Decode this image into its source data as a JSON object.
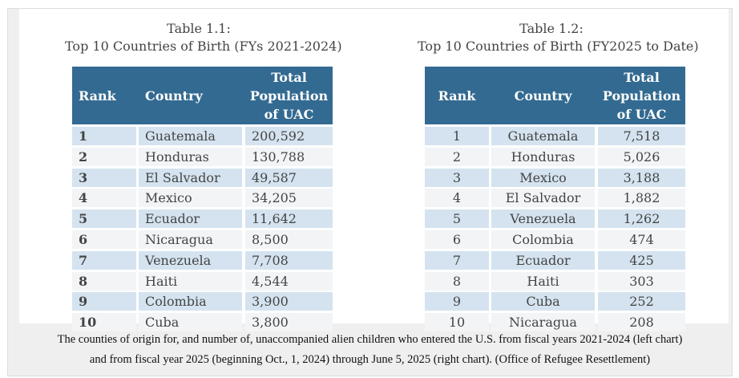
{
  "table_left": {
    "title_line1": "Table 1.1:",
    "title_line2": "Top 10 Countries of Birth (FYs 2021-2024)",
    "headers": [
      "Rank",
      "Country",
      "Total Population of UAC"
    ],
    "rows": [
      [
        "1",
        "Guatemala",
        "200,592"
      ],
      [
        "2",
        "Honduras",
        "130,788"
      ],
      [
        "3",
        "El Salvador",
        "49,587"
      ],
      [
        "4",
        "Mexico",
        "34,205"
      ],
      [
        "5",
        "Ecuador",
        "11,642"
      ],
      [
        "6",
        "Nicaragua",
        "8,500"
      ],
      [
        "7",
        "Venezuela",
        "7,708"
      ],
      [
        "8",
        "Haiti",
        "4,544"
      ],
      [
        "9",
        "Colombia",
        "3,900"
      ],
      [
        "10",
        "Cuba",
        "3,800"
      ]
    ]
  },
  "table_right": {
    "title_line1": "Table 1.2:",
    "title_line2": "Top 10 Countries of Birth (FY2025 to Date)",
    "headers": [
      "Rank",
      "Country",
      "Total Population of UAC"
    ],
    "rows": [
      [
        "1",
        "Guatemala",
        "7,518"
      ],
      [
        "2",
        "Honduras",
        "5,026"
      ],
      [
        "3",
        "Mexico",
        "3,188"
      ],
      [
        "4",
        "El Salvador",
        "1,882"
      ],
      [
        "5",
        "Venezuela",
        "1,262"
      ],
      [
        "6",
        "Colombia",
        "474"
      ],
      [
        "7",
        "Ecuador",
        "425"
      ],
      [
        "8",
        "Haiti",
        "303"
      ],
      [
        "9",
        "Cuba",
        "252"
      ],
      [
        "10",
        "Nicaragua",
        "208"
      ]
    ]
  },
  "caption": {
    "line1": "The counties of origin for, and number of, unaccompanied alien children who entered the U.S. from fiscal years 2021-2024 (left chart)",
    "line2": "and from fiscal year 2025 (beginning Oct., 1, 2024) through June 5, 2025 (right chart). (Office of Refugee Resettlement)"
  },
  "colors": {
    "header": "#336a91",
    "row_odd": "#d4e3ef",
    "row_even": "#f2f4f6"
  }
}
